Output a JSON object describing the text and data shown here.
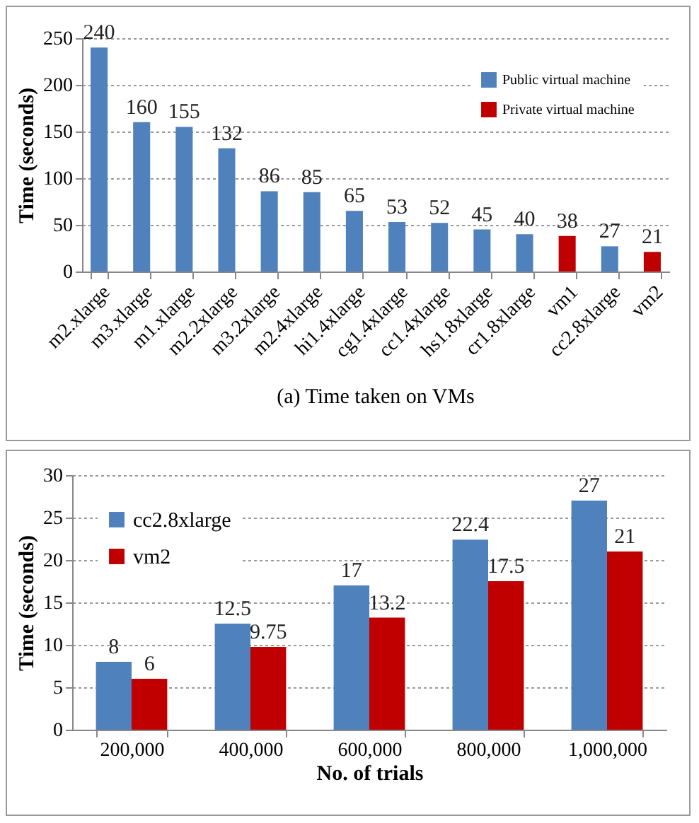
{
  "chart_data": [
    {
      "type": "bar",
      "ylabel": "Time (seconds)",
      "annotations": [
        "(a) Time taken on VMs"
      ],
      "categories": [
        "m2.xlarge",
        "m3.xlarge",
        "m1.xlarge",
        "m2.2xlarge",
        "m3.2xlarge",
        "m2.4xlarge",
        "hi1.4xlarge",
        "cg1.4xlarge",
        "cc1.4xlarge",
        "hs1.8xlarge",
        "cr1.8xlarge",
        "vm1",
        "cc2.8xlarge",
        "vm2"
      ],
      "series": [
        {
          "name": "Public virtual machine",
          "color": "#4f81bd",
          "values": [
            240,
            160,
            155,
            132,
            86,
            85,
            65,
            53,
            52,
            45,
            40,
            null,
            27,
            null
          ]
        },
        {
          "name": "Private virtual machine",
          "color": "#c00000",
          "values": [
            null,
            null,
            null,
            null,
            null,
            null,
            null,
            null,
            null,
            null,
            null,
            38,
            null,
            21
          ]
        }
      ],
      "stacked": true,
      "ylim": [
        0,
        250
      ],
      "yticks": [
        0,
        50,
        100,
        150,
        200,
        250
      ],
      "grid": "y",
      "legend": "top right",
      "data_labels": true
    },
    {
      "type": "bar",
      "ylabel": "Time (seconds)",
      "xlabel": "No. of trials",
      "categories": [
        "200,000",
        "400,000",
        "600,000",
        "800,000",
        "1,000,000"
      ],
      "series": [
        {
          "name": "cc2.8xlarge",
          "color": "#4f81bd",
          "values": [
            8,
            12.5,
            17,
            22.4,
            27
          ]
        },
        {
          "name": "vm2",
          "color": "#c00000",
          "values": [
            6,
            9.75,
            13.2,
            17.5,
            21
          ]
        }
      ],
      "ylim": [
        0,
        30
      ],
      "yticks": [
        0,
        5,
        10,
        15,
        20,
        25,
        30
      ],
      "grid": "y",
      "legend": "top left",
      "data_labels": true
    }
  ]
}
